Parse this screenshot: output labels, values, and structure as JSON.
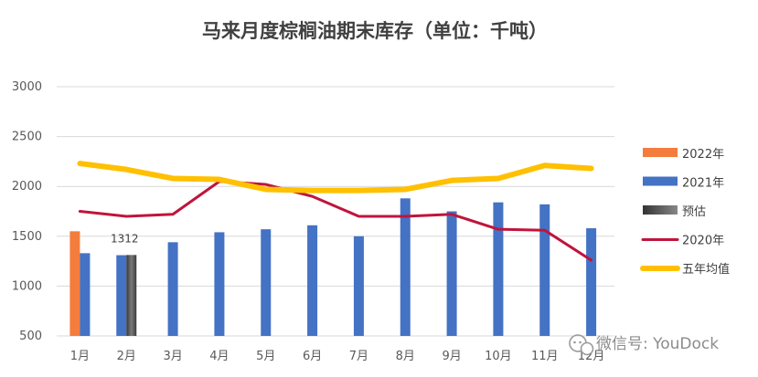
{
  "chart_data": {
    "type": "bar",
    "title": "马来月度棕榈油期末库存（单位：千吨）",
    "categories": [
      "1月",
      "2月",
      "3月",
      "4月",
      "5月",
      "6月",
      "7月",
      "8月",
      "9月",
      "10月",
      "11月",
      "12月"
    ],
    "ylim": [
      500,
      3000
    ],
    "yticks": [
      500,
      1000,
      1500,
      2000,
      2500,
      3000
    ],
    "grid": true,
    "legend_position": "right",
    "series": [
      {
        "name": "2022年",
        "kind": "bar",
        "color": "#f47c3c",
        "values": [
          1550,
          null,
          null,
          null,
          null,
          null,
          null,
          null,
          null,
          null,
          null,
          null
        ]
      },
      {
        "name": "2021年",
        "kind": "bar",
        "color": "#4472c4",
        "values": [
          1330,
          1310,
          1440,
          1540,
          1570,
          1610,
          1500,
          1880,
          1750,
          1840,
          1820,
          1580
        ]
      },
      {
        "name": "预估",
        "kind": "bar",
        "color": "#555555",
        "values": [
          null,
          1312,
          null,
          null,
          null,
          null,
          null,
          null,
          null,
          null,
          null,
          null
        ]
      },
      {
        "name": "2020年",
        "kind": "line",
        "color": "#c0143c",
        "values": [
          1750,
          1700,
          1720,
          2050,
          2020,
          1900,
          1700,
          1700,
          1720,
          1570,
          1560,
          1260
        ]
      },
      {
        "name": "五年均值",
        "kind": "line",
        "color": "#ffc000",
        "values": [
          2230,
          2170,
          2080,
          2070,
          1970,
          1960,
          1960,
          1970,
          2060,
          2080,
          2210,
          2180
        ]
      }
    ],
    "annotations": [
      {
        "category": "2月",
        "series": "预估",
        "text": "1312"
      }
    ]
  },
  "watermark": {
    "text": "微信号: YouDock",
    "icon": "wechat-icon"
  }
}
